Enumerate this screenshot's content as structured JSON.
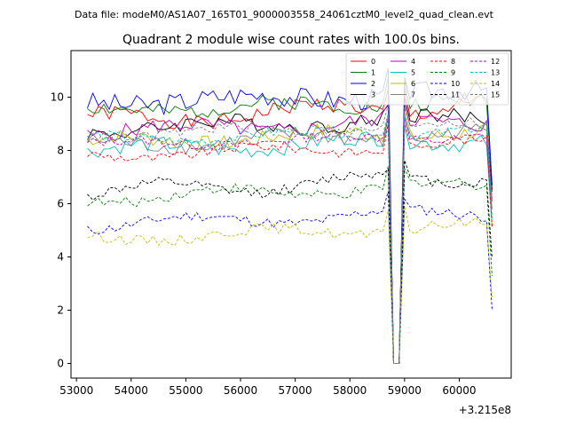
{
  "chart_data": {
    "type": "line",
    "suptitle": "Data file: modeM0/AS1A07_165T01_9000003558_24061cztM0_level2_quad_clean.evt",
    "title": "Quadrant 2 module wise count rates with 100.0s bins.",
    "xlabel": "",
    "ylabel": "",
    "x_offset_label": "+3.215e8",
    "xlim": [
      52900,
      60950
    ],
    "ylim": [
      -0.55,
      11.75
    ],
    "x_ticks": [
      53000,
      54000,
      55000,
      56000,
      57000,
      58000,
      59000,
      60000
    ],
    "y_ticks": [
      0,
      2,
      4,
      6,
      8,
      10
    ],
    "x_start": 53200,
    "x_step": 100,
    "dip_start_index": 56,
    "dip_length": 2,
    "series": [
      {
        "name": "0",
        "color": "#ff0000",
        "style": "solid",
        "base": 9.1,
        "wave": 0.45,
        "amp": 0.3,
        "seed": 1
      },
      {
        "name": "1",
        "color": "#008000",
        "style": "solid",
        "base": 9.5,
        "wave": 0.25,
        "amp": 0.3,
        "seed": 2
      },
      {
        "name": "2",
        "color": "#0000ff",
        "style": "solid",
        "base": 9.8,
        "wave": 0.25,
        "amp": 0.4,
        "seed": 3
      },
      {
        "name": "3",
        "color": "#000000",
        "style": "solid",
        "base": 8.8,
        "wave": 0.3,
        "amp": 0.3,
        "seed": 4
      },
      {
        "name": "4",
        "color": "#bf00bf",
        "style": "solid",
        "base": 8.7,
        "wave": 0.3,
        "amp": 0.3,
        "seed": 5
      },
      {
        "name": "5",
        "color": "#00bfbf",
        "style": "solid",
        "base": 8.0,
        "wave": 0.3,
        "amp": 0.3,
        "seed": 6
      },
      {
        "name": "6",
        "color": "#bfbf00",
        "style": "solid",
        "base": 8.3,
        "wave": 0.3,
        "amp": 0.3,
        "seed": 7
      },
      {
        "name": "7",
        "color": "#808080",
        "style": "solid",
        "base": 8.2,
        "wave": 0.3,
        "amp": 0.3,
        "seed": 8
      },
      {
        "name": "8",
        "color": "#ff0000",
        "style": "dashed",
        "base": 7.8,
        "wave": 0.3,
        "amp": 0.2,
        "seed": 9
      },
      {
        "name": "9",
        "color": "#008000",
        "style": "dashed",
        "base": 6.2,
        "wave": 0.35,
        "amp": 0.2,
        "seed": 10
      },
      {
        "name": "10",
        "color": "#0000ff",
        "style": "dashed",
        "base": 5.2,
        "wave": 0.35,
        "amp": 0.2,
        "seed": 11
      },
      {
        "name": "11",
        "color": "#000000",
        "style": "dashed",
        "base": 6.4,
        "wave": 0.45,
        "amp": 0.2,
        "seed": 12
      },
      {
        "name": "12",
        "color": "#bf00bf",
        "style": "dashed",
        "base": 8.2,
        "wave": 0.25,
        "amp": 0.2,
        "seed": 13
      },
      {
        "name": "13",
        "color": "#00bfbf",
        "style": "dashed",
        "base": 8.4,
        "wave": 0.25,
        "amp": 0.2,
        "seed": 14
      },
      {
        "name": "14",
        "color": "#bfbf00",
        "style": "dashed",
        "base": 4.7,
        "wave": 0.3,
        "amp": 0.2,
        "seed": 15
      },
      {
        "name": "15",
        "color": "#808080",
        "style": "dashed",
        "base": 8.6,
        "wave": 0.25,
        "amp": 0.2,
        "seed": 16
      }
    ],
    "legend_loc": "upper right",
    "legend_columns": 4,
    "grid": false
  }
}
